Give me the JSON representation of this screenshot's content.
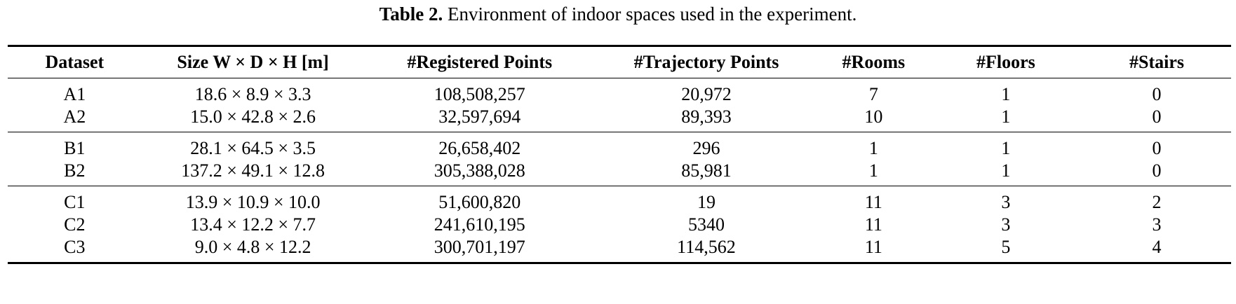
{
  "caption": {
    "label": "Table 2.",
    "text": " Environment of indoor spaces used in the experiment."
  },
  "table": {
    "headers": [
      "Dataset",
      "Size W × D × H [m]",
      "#Registered Points",
      "#Trajectory Points",
      "#Rooms",
      "#Floors",
      "#Stairs"
    ],
    "groups": [
      [
        [
          "A1",
          "18.6 × 8.9 × 3.3",
          "108,508,257",
          "20,972",
          "7",
          "1",
          "0"
        ],
        [
          "A2",
          "15.0 × 42.8 × 2.6",
          "32,597,694",
          "89,393",
          "10",
          "1",
          "0"
        ]
      ],
      [
        [
          "B1",
          "28.1 × 64.5 × 3.5",
          "26,658,402",
          "296",
          "1",
          "1",
          "0"
        ],
        [
          "B2",
          "137.2 × 49.1 × 12.8",
          "305,388,028",
          "85,981",
          "1",
          "1",
          "0"
        ]
      ],
      [
        [
          "C1",
          "13.9 × 10.9 × 10.0",
          "51,600,820",
          "19",
          "11",
          "3",
          "2"
        ],
        [
          "C2",
          "13.4 × 12.2 × 7.7",
          "241,610,195",
          "5340",
          "11",
          "3",
          "3"
        ],
        [
          "C3",
          "9.0 × 4.8 × 12.2",
          "300,701,197",
          "114,562",
          "11",
          "5",
          "4"
        ]
      ]
    ]
  }
}
